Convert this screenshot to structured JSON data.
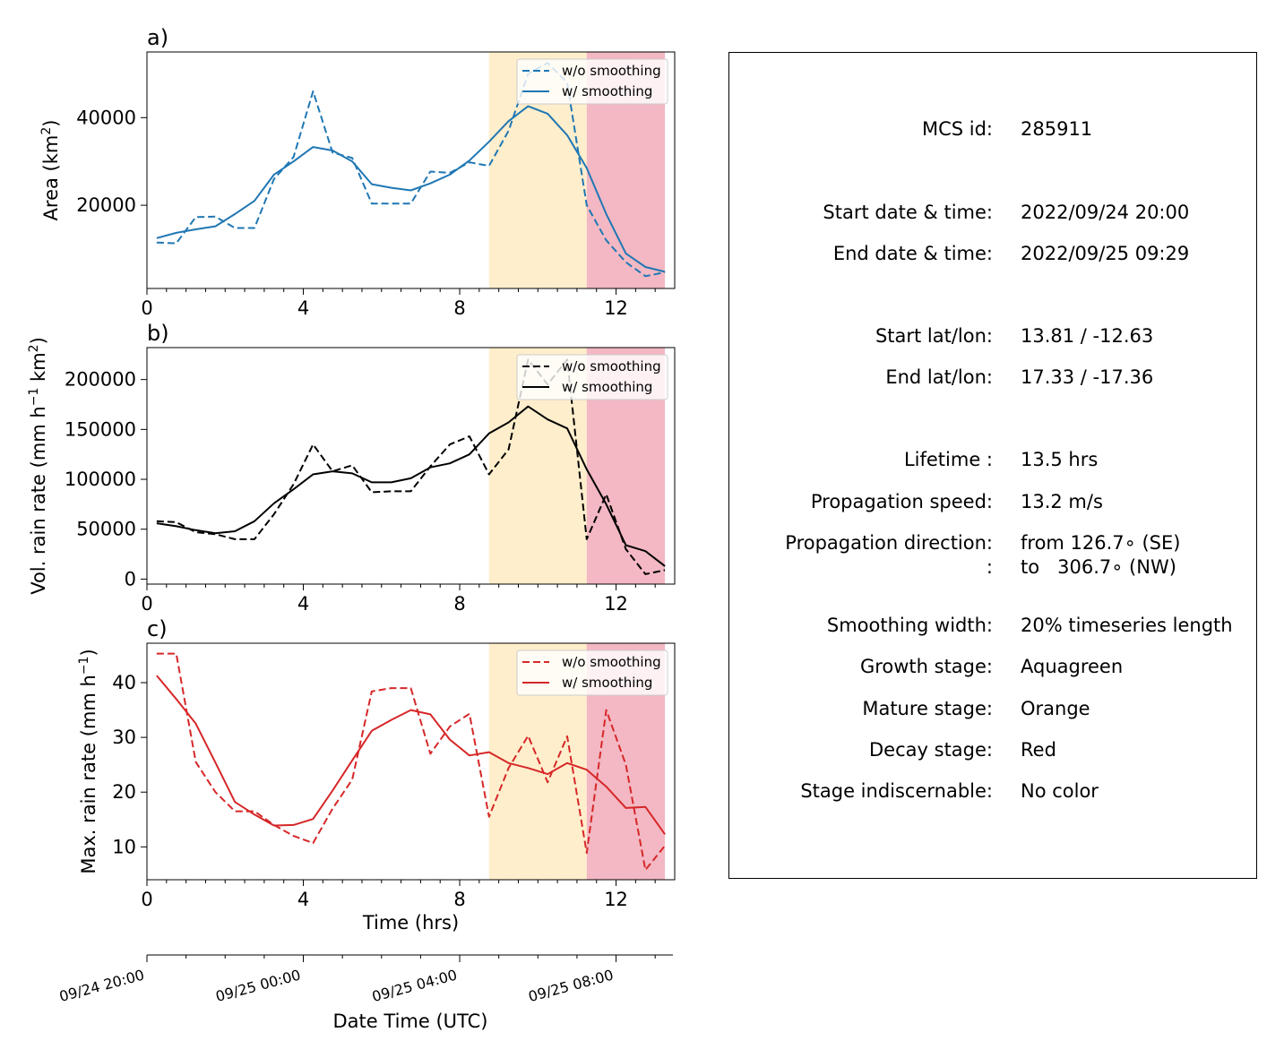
{
  "chart_data": [
    {
      "type": "line",
      "panel_label": "a)",
      "ylabel": "Area  (km²)",
      "xlabel": "",
      "xlim": [
        0,
        13.5
      ],
      "ylim": [
        1000,
        55000
      ],
      "xticks": [
        "0",
        "4",
        "8",
        "12"
      ],
      "yticks": [
        "20000",
        "40000"
      ],
      "stage_bands": [
        {
          "stage": "Mature stage",
          "from": 8.75,
          "to": 11.25,
          "color": "#ffeecc"
        },
        {
          "stage": "Decay stage",
          "from": 11.25,
          "to": 13.25,
          "color": "#f3b8c3"
        }
      ],
      "series": [
        {
          "name": "w/o smoothing",
          "style": "dashed",
          "color": "#1f77b4",
          "x": [
            0.25,
            0.75,
            1.25,
            1.75,
            2.25,
            2.75,
            3.25,
            3.75,
            4.25,
            4.75,
            5.25,
            5.75,
            6.25,
            6.75,
            7.25,
            7.75,
            8.25,
            8.75,
            9.25,
            9.75,
            10.25,
            10.75,
            11.25,
            11.75,
            12.25,
            12.75,
            13.25
          ],
          "y": [
            11500,
            11300,
            17300,
            17400,
            14800,
            14800,
            26000,
            31000,
            46000,
            32000,
            30800,
            20400,
            20400,
            20400,
            27700,
            27400,
            29800,
            29000,
            37000,
            50000,
            52500,
            48000,
            20000,
            12000,
            7000,
            3800,
            4700
          ]
        },
        {
          "name": "w/ smoothing",
          "style": "solid",
          "color": "#1f77b4",
          "x": [
            0.25,
            0.75,
            1.25,
            1.75,
            2.25,
            2.75,
            3.25,
            3.75,
            4.25,
            4.75,
            5.25,
            5.75,
            6.25,
            6.75,
            7.25,
            7.75,
            8.25,
            8.75,
            9.25,
            9.75,
            10.25,
            10.75,
            11.25,
            11.75,
            12.25,
            12.75,
            13.25
          ],
          "y": [
            12500,
            13700,
            14500,
            15200,
            18000,
            21000,
            27000,
            30000,
            33300,
            32500,
            30000,
            24800,
            24000,
            23400,
            25000,
            27000,
            30200,
            34500,
            39200,
            42600,
            40900,
            36000,
            28500,
            18000,
            9000,
            5900,
            4800
          ]
        }
      ]
    },
    {
      "type": "line",
      "panel_label": "b)",
      "ylabel": "Vol. rain rate (mm h⁻¹ km²)",
      "xlabel": "",
      "xlim": [
        0,
        13.5
      ],
      "ylim": [
        -5000,
        232000
      ],
      "xticks": [
        "0",
        "4",
        "8",
        "12"
      ],
      "yticks": [
        "0",
        "50000",
        "100000",
        "150000",
        "200000"
      ],
      "stage_bands": [
        {
          "stage": "Mature stage",
          "from": 8.75,
          "to": 11.25,
          "color": "#ffeecc"
        },
        {
          "stage": "Decay stage",
          "from": 11.25,
          "to": 13.25,
          "color": "#f3b8c3"
        }
      ],
      "series": [
        {
          "name": "w/o smoothing",
          "style": "dashed",
          "color": "#000000",
          "x": [
            0.25,
            0.75,
            1.25,
            1.75,
            2.25,
            2.75,
            3.25,
            3.75,
            4.25,
            4.75,
            5.25,
            5.75,
            6.25,
            6.75,
            7.25,
            7.75,
            8.25,
            8.75,
            9.25,
            9.75,
            10.25,
            10.75,
            11.25,
            11.75,
            12.25,
            12.75,
            13.25
          ],
          "y": [
            58000,
            57000,
            47000,
            45000,
            40000,
            40000,
            65000,
            95000,
            135000,
            108000,
            114000,
            87000,
            88000,
            88000,
            113000,
            135000,
            143000,
            105000,
            130000,
            220000,
            195000,
            220000,
            40000,
            85000,
            30000,
            5000,
            9000
          ]
        },
        {
          "name": "w/ smoothing",
          "style": "solid",
          "color": "#000000",
          "x": [
            0.25,
            0.75,
            1.25,
            1.75,
            2.25,
            2.75,
            3.25,
            3.75,
            4.25,
            4.75,
            5.25,
            5.75,
            6.25,
            6.75,
            7.25,
            7.75,
            8.25,
            8.75,
            9.25,
            9.75,
            10.25,
            10.75,
            11.25,
            11.75,
            12.25,
            12.75,
            13.25
          ],
          "y": [
            56000,
            53000,
            49000,
            46000,
            48000,
            58000,
            76000,
            90000,
            105000,
            108000,
            106000,
            97000,
            97000,
            101000,
            112000,
            116000,
            125000,
            146000,
            157000,
            173000,
            160000,
            151000,
            110000,
            75000,
            34000,
            28000,
            13000
          ]
        }
      ]
    },
    {
      "type": "line",
      "panel_label": "c)",
      "ylabel": "Max. rain rate  (mm h⁻¹)",
      "xlabel": "Time (hrs)",
      "xlim": [
        0,
        13.5
      ],
      "ylim": [
        4,
        47.2
      ],
      "xticks": [
        "0",
        "4",
        "8",
        "12"
      ],
      "yticks": [
        "10",
        "20",
        "30",
        "40"
      ],
      "stage_bands": [
        {
          "stage": "Mature stage",
          "from": 8.75,
          "to": 11.25,
          "color": "#ffeecc"
        },
        {
          "stage": "Decay stage",
          "from": 11.25,
          "to": 13.25,
          "color": "#f3b8c3"
        }
      ],
      "series": [
        {
          "name": "w/o smoothing",
          "style": "dashed",
          "color": "#d62728",
          "x": [
            0.25,
            0.75,
            1.25,
            1.75,
            2.25,
            2.75,
            3.25,
            3.75,
            4.25,
            4.75,
            5.25,
            5.75,
            6.25,
            6.75,
            7.25,
            7.75,
            8.25,
            8.75,
            9.25,
            9.75,
            10.25,
            10.75,
            11.25,
            11.75,
            12.25,
            12.75,
            13.25
          ],
          "y": [
            45.3,
            45.3,
            25.5,
            20,
            16.5,
            16.5,
            14,
            12,
            10.7,
            17,
            22.3,
            38.4,
            39,
            39,
            27,
            32,
            34.3,
            15.5,
            24.4,
            30.3,
            21.8,
            30.2,
            8.9,
            35,
            25,
            5.8,
            10.2
          ]
        },
        {
          "name": "w/ smoothing",
          "style": "solid",
          "color": "#d62728",
          "x": [
            0.25,
            0.75,
            1.25,
            1.75,
            2.25,
            2.75,
            3.25,
            3.75,
            4.25,
            4.75,
            5.25,
            5.75,
            6.25,
            6.75,
            7.25,
            7.75,
            8.25,
            8.75,
            9.25,
            9.75,
            10.25,
            10.75,
            11.25,
            11.75,
            12.25,
            12.75,
            13.25
          ],
          "y": [
            41.3,
            37,
            32.5,
            25.4,
            18.2,
            15.9,
            13.9,
            14,
            15.1,
            20.3,
            25.8,
            31.2,
            33.2,
            35,
            34.2,
            29.6,
            26.7,
            27.3,
            25.3,
            24.4,
            23.3,
            25.3,
            24.1,
            21,
            17.1,
            17.3,
            12.3
          ]
        }
      ]
    }
  ],
  "date_axis": {
    "label": "Date Time (UTC)",
    "ticks": [
      "09/24 20:00",
      "09/25 00:00",
      "09/25 04:00",
      "09/25 08:00"
    ]
  },
  "info": {
    "rows": [
      {
        "label": "MCS id:",
        "value": "285911"
      },
      {
        "label": "Start date & time:",
        "value": "2022/09/24 20:00"
      },
      {
        "label": "End date & time:",
        "value": "2022/09/25 09:29"
      },
      {
        "label": "Start lat/lon:",
        "value": "13.81 / -12.63"
      },
      {
        "label": "End lat/lon:",
        "value": "17.33 / -17.36"
      },
      {
        "label": "Lifetime :",
        "value": "13.5 hrs"
      },
      {
        "label": "Propagation speed:",
        "value": "13.2 m/s"
      },
      {
        "label": "Propagation direction:",
        "value": "from 126.7∘ (SE)"
      },
      {
        "label": ":",
        "value": "to   306.7∘ (NW)"
      },
      {
        "label": "Smoothing width:",
        "value": "20% timeseries length"
      },
      {
        "label": "Growth stage:",
        "value": "Aquagreen"
      },
      {
        "label": "Mature stage:",
        "value": "Orange"
      },
      {
        "label": "Decay stage:",
        "value": "Red"
      },
      {
        "label": "Stage indiscernable:",
        "value": "No color"
      }
    ]
  }
}
